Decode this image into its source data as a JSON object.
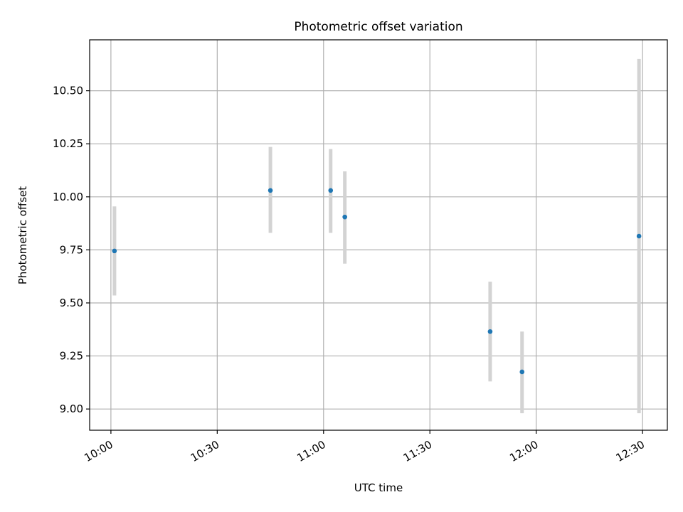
{
  "chart_data": {
    "type": "scatter",
    "title": "Photometric offset variation",
    "xlabel": "UTC time",
    "ylabel": "Photometric offset",
    "xlim": [
      "09:54",
      "12:37"
    ],
    "ylim": [
      8.9,
      10.74
    ],
    "grid": true,
    "x_ticks": [
      "10:00",
      "10:30",
      "11:00",
      "11:30",
      "12:00",
      "12:30"
    ],
    "y_ticks": [
      "9.00",
      "9.25",
      "9.50",
      "9.75",
      "10.00",
      "10.25",
      "10.50"
    ],
    "series": [
      {
        "marker_color": "#1f77b4",
        "errorbar_color": "#d3d3d3",
        "points": [
          {
            "x": "10:01",
            "y": 9.745,
            "err_low": 9.535,
            "err_high": 9.955
          },
          {
            "x": "10:45",
            "y": 10.03,
            "err_low": 9.83,
            "err_high": 10.235
          },
          {
            "x": "11:02",
            "y": 10.03,
            "err_low": 9.83,
            "err_high": 10.225
          },
          {
            "x": "11:06",
            "y": 9.905,
            "err_low": 9.685,
            "err_high": 10.12
          },
          {
            "x": "11:47",
            "y": 9.365,
            "err_low": 9.13,
            "err_high": 9.6
          },
          {
            "x": "11:56",
            "y": 9.175,
            "err_low": 8.98,
            "err_high": 9.365
          },
          {
            "x": "12:29",
            "y": 9.815,
            "err_low": 8.98,
            "err_high": 10.65
          }
        ]
      }
    ]
  }
}
